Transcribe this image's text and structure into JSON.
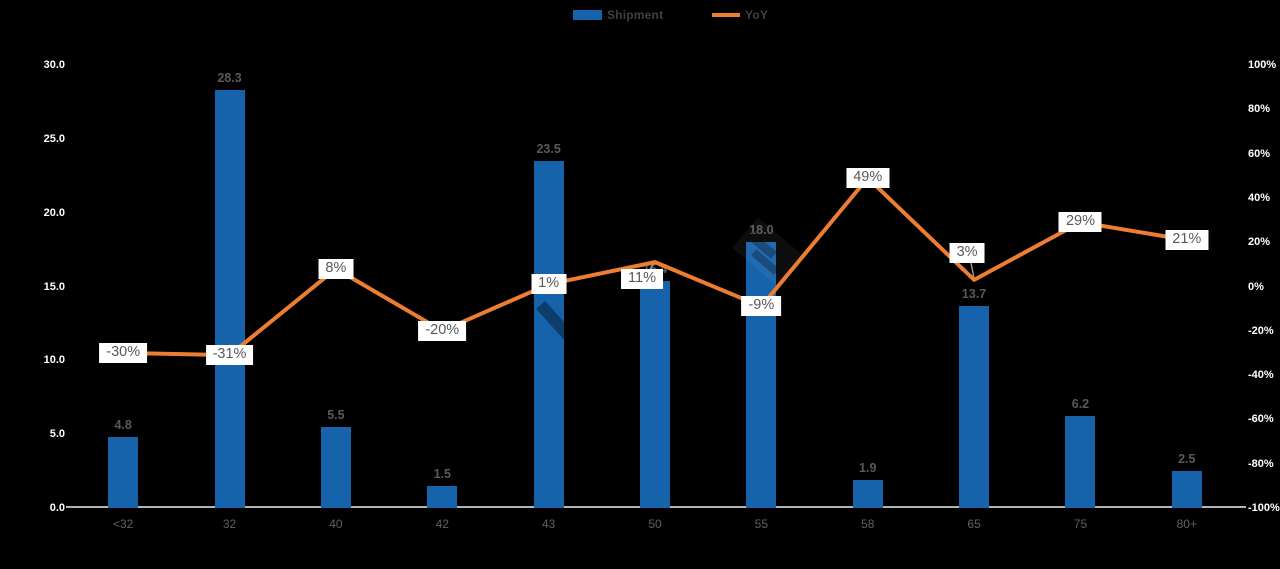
{
  "legend": {
    "items": [
      {
        "label": "Shipment",
        "color": "#1663AC",
        "swatch": "bar"
      },
      {
        "label": "YoY",
        "color": "#ED7D31",
        "swatch": "line"
      }
    ]
  },
  "colors": {
    "background": "#000000",
    "bar": "#1663AC",
    "line": "#ED7D31",
    "axis_text": "#FFFFFF",
    "muted_text": "#595959",
    "label_box_bg": "#FFFFFF",
    "axis_line": "#B3B3B3"
  },
  "chart_data": {
    "type": "bar",
    "subtype": "combo bar+line, dual axis",
    "categories": [
      "<32",
      "32",
      "40",
      "42",
      "43",
      "50",
      "55",
      "58",
      "65",
      "75",
      "80+"
    ],
    "series": [
      {
        "name": "Shipment",
        "type": "bar",
        "axis": "left",
        "color": "#1663AC",
        "values": [
          4.8,
          28.3,
          5.5,
          1.5,
          23.5,
          15.4,
          18.0,
          1.9,
          13.7,
          6.2,
          2.5
        ]
      },
      {
        "name": "YoY",
        "type": "line",
        "axis": "right",
        "color": "#ED7D31",
        "values_percent": [
          -30,
          -31,
          8,
          -20,
          1,
          11,
          -9,
          49,
          3,
          29,
          21
        ],
        "point_labels": [
          "-30%",
          "-31%",
          "8%",
          "-20%",
          "1%",
          "11%",
          "-9%",
          "49%",
          "3%",
          "29%",
          "21%"
        ]
      }
    ],
    "left_axis": {
      "min": 0,
      "max": 30,
      "tick_labels": [
        "0.0",
        "5.0",
        "10.0",
        "15.0",
        "20.0",
        "25.0",
        "30.0"
      ]
    },
    "right_axis": {
      "min": -100,
      "max": 100,
      "tick_labels": [
        "100%",
        "80%",
        "60%",
        "40%",
        "20%",
        "0%",
        "-20%",
        "-40%",
        "-60%",
        "-80%",
        "-100%"
      ]
    },
    "legend_position": "top-center",
    "grid": false
  }
}
